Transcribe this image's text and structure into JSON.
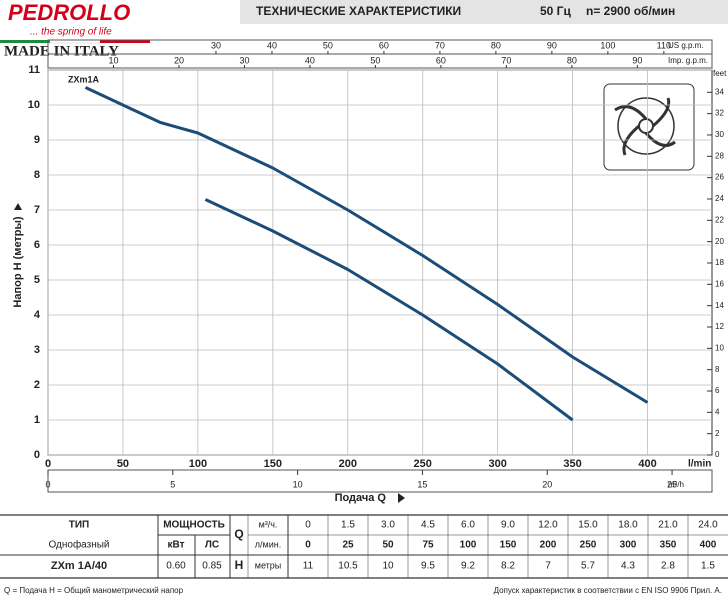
{
  "header": {
    "brand": "PEDROLLO",
    "slogan": "... the spring of life",
    "made_in": "MADE IN ITALY",
    "title": "ТЕХНИЧЕСКИЕ ХАРАКТЕРИСТИКИ",
    "frequency": "50 Гц",
    "speed": "n= 2900 об/мин"
  },
  "chart_data": {
    "type": "line",
    "series": [
      {
        "name": "ZXm1A",
        "color": "#1b4d78",
        "x": [
          25,
          50,
          75,
          100,
          150,
          200,
          250,
          300,
          350,
          400
        ],
        "values": [
          10.5,
          10,
          9.5,
          9.2,
          8.2,
          7,
          5.7,
          4.3,
          2.8,
          1.5
        ]
      },
      {
        "color": "#1b4d78",
        "x": [
          105,
          150,
          200,
          250,
          300,
          350
        ],
        "values": [
          7.3,
          6.4,
          5.3,
          4.0,
          2.6,
          1.0
        ]
      }
    ],
    "xlim": [
      0,
      443
    ],
    "xticks": [
      0,
      50,
      100,
      150,
      200,
      250,
      300,
      350,
      400
    ],
    "x_label": "l/min",
    "ylim": [
      0,
      11
    ],
    "yticks": [
      0,
      1,
      2,
      3,
      4,
      5,
      6,
      7,
      8,
      9,
      10,
      11
    ],
    "y_label": "Напор H (метры)",
    "y2lim": [
      0,
      36.09
    ],
    "y2ticks": [
      0,
      2,
      4,
      6,
      8,
      10,
      12,
      14,
      16,
      18,
      20,
      22,
      24,
      26,
      28,
      30,
      32,
      34
    ],
    "y2_label": "feet",
    "us_gpm_lim": [
      0,
      118.6
    ],
    "us_gpm_ticks": [
      30,
      40,
      50,
      60,
      70,
      80,
      90,
      100,
      110
    ],
    "us_gpm_label": "US g.p.m.",
    "imp_gpm_lim": [
      0,
      101.4
    ],
    "imp_gpm_ticks": [
      10,
      20,
      30,
      40,
      50,
      60,
      70,
      80,
      90
    ],
    "imp_gpm_label": "Imp. g.p.m.",
    "m3h_lim": [
      0,
      26.6
    ],
    "m3h_ticks": [
      0,
      5,
      10,
      15,
      20,
      25
    ],
    "m3h_label": "m³/h",
    "x_title": "Подача Q",
    "grid": true
  },
  "table": {
    "type": "ТИП",
    "power": "МОЩНОСТЬ",
    "phase": "Однофазный",
    "kw": "кВт",
    "hp": "ЛС",
    "q": "Q",
    "h": "H",
    "unit_m3h": "м³/ч.",
    "unit_lmin": "л/мин.",
    "unit_m": "метры",
    "q_m3h": [
      "0",
      "1.5",
      "3.0",
      "4.5",
      "6.0",
      "9.0",
      "12.0",
      "15.0",
      "18.0",
      "21.0",
      "24.0"
    ],
    "q_lmin": [
      "0",
      "25",
      "50",
      "75",
      "100",
      "150",
      "200",
      "250",
      "300",
      "350",
      "400"
    ],
    "model": "ZXm 1A/40",
    "model_kw": "0.60",
    "model_hp": "0.85",
    "h_values": [
      "11",
      "10.5",
      "10",
      "9.5",
      "9.2",
      "8.2",
      "7",
      "5.7",
      "4.3",
      "2.8",
      "1.5"
    ]
  },
  "footer": {
    "left": "Q = Подача   H = Общий манометрический напор",
    "right": "Допуск характеристик в соответствии с EN ISO 9906 Прил. А."
  }
}
